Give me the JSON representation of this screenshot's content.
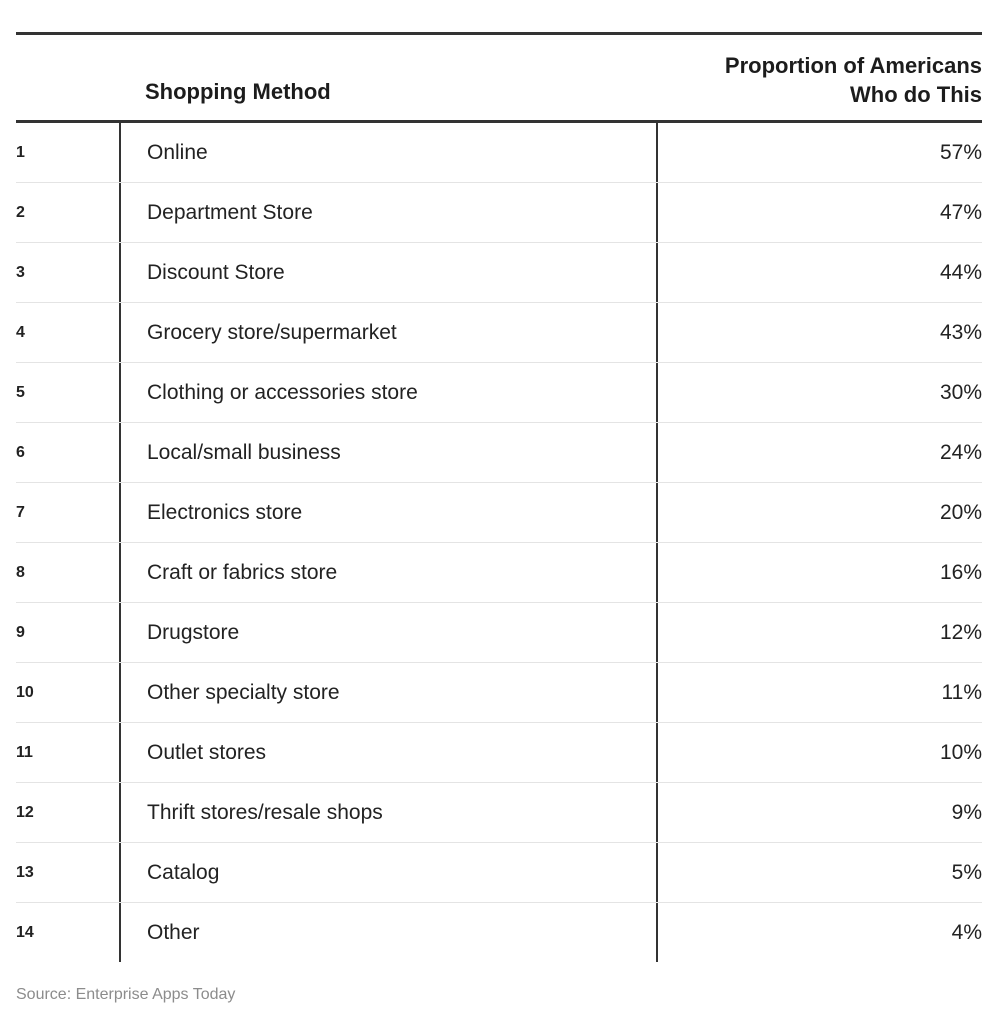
{
  "chart_data": {
    "type": "table",
    "columns": [
      "",
      "Shopping Method",
      "Proportion of Americans Who do This"
    ],
    "headers": {
      "method": "Shopping Method",
      "value_line1": "Proportion of Americans",
      "value_line2": "Who do This"
    },
    "rows": [
      {
        "rank": "1",
        "method": "Online",
        "value": "57%"
      },
      {
        "rank": "2",
        "method": "Department Store",
        "value": "47%"
      },
      {
        "rank": "3",
        "method": "Discount Store",
        "value": "44%"
      },
      {
        "rank": "4",
        "method": "Grocery store/supermarket",
        "value": "43%"
      },
      {
        "rank": "5",
        "method": "Clothing or accessories store",
        "value": "30%"
      },
      {
        "rank": "6",
        "method": "Local/small business",
        "value": "24%"
      },
      {
        "rank": "7",
        "method": "Electronics store",
        "value": "20%"
      },
      {
        "rank": "8",
        "method": "Craft or fabrics store",
        "value": "16%"
      },
      {
        "rank": "9",
        "method": "Drugstore",
        "value": "12%"
      },
      {
        "rank": "10",
        "method": "Other specialty store",
        "value": "11%"
      },
      {
        "rank": "11",
        "method": "Outlet stores",
        "value": "10%"
      },
      {
        "rank": "12",
        "method": "Thrift stores/resale shops",
        "value": "9%"
      },
      {
        "rank": "13",
        "method": "Catalog",
        "value": "5%"
      },
      {
        "rank": "14",
        "method": "Other",
        "value": "4%"
      }
    ],
    "source": "Source: Enterprise Apps Today"
  }
}
